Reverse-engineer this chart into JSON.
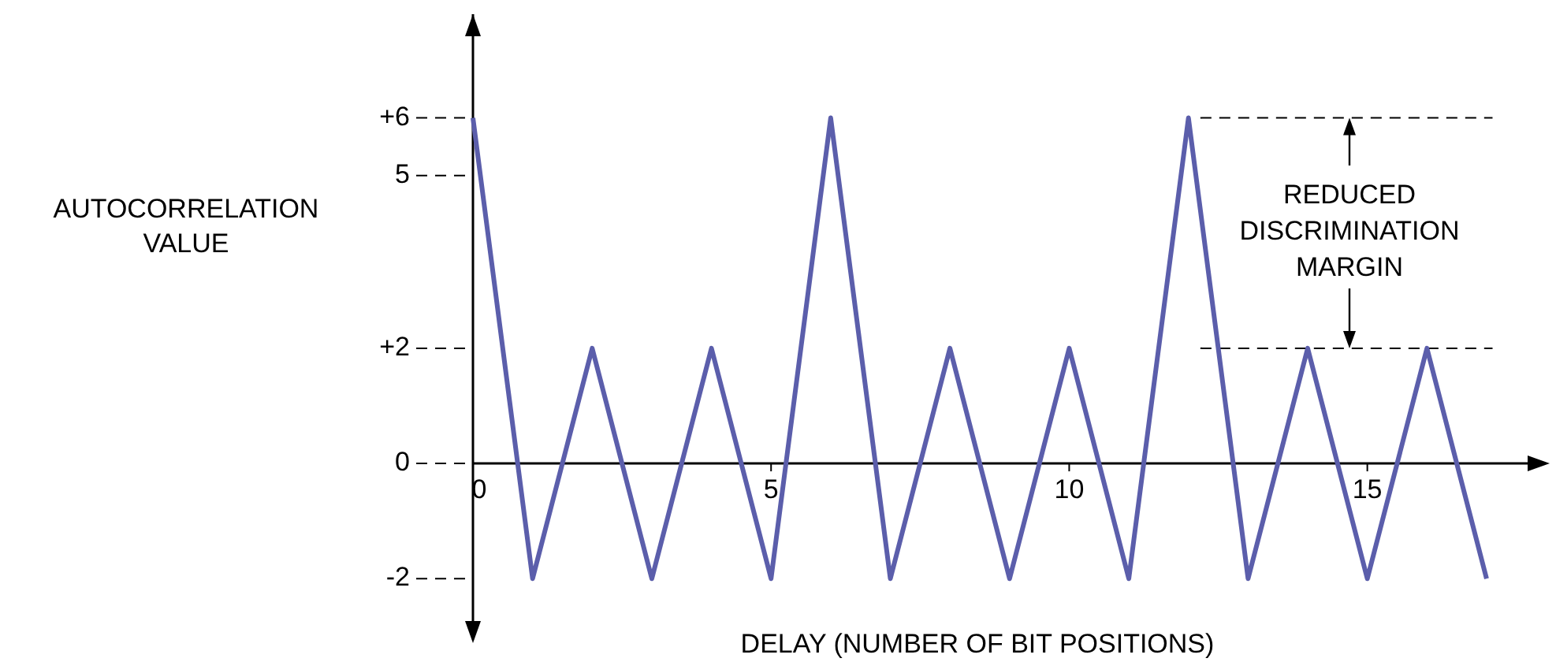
{
  "chart_data": {
    "type": "line",
    "xlabel": "DELAY (NUMBER OF BIT POSITIONS)",
    "ylabel": "AUTOCORRELATION VALUE",
    "x": [
      0,
      1,
      2,
      3,
      4,
      5,
      6,
      7,
      8,
      9,
      10,
      11,
      12,
      13,
      14,
      15,
      16,
      17
    ],
    "series": [
      {
        "color": "#5b5eab",
        "values": [
          6,
          -2,
          2,
          -2,
          2,
          -2,
          6,
          -2,
          2,
          -2,
          2,
          -2,
          6,
          -2,
          2,
          -2,
          2,
          -2
        ]
      }
    ],
    "xlim": [
      0,
      17.9
    ],
    "ylim": [
      -2.9,
      7.8
    ],
    "xticks": [
      0,
      5,
      10,
      15
    ],
    "yticks": [
      -2,
      0,
      {
        "value": 2,
        "label": "+2"
      },
      5,
      {
        "value": 6,
        "label": "+6"
      }
    ],
    "ref_lines": [
      {
        "axis": "y",
        "value": 6,
        "line_style": "dashed"
      },
      {
        "axis": "y",
        "value": 2,
        "line_style": "dashed"
      }
    ],
    "annotations": [
      "REDUCED DISCRIMINATION MARGIN"
    ],
    "marker": "none",
    "line_style": "solid"
  }
}
